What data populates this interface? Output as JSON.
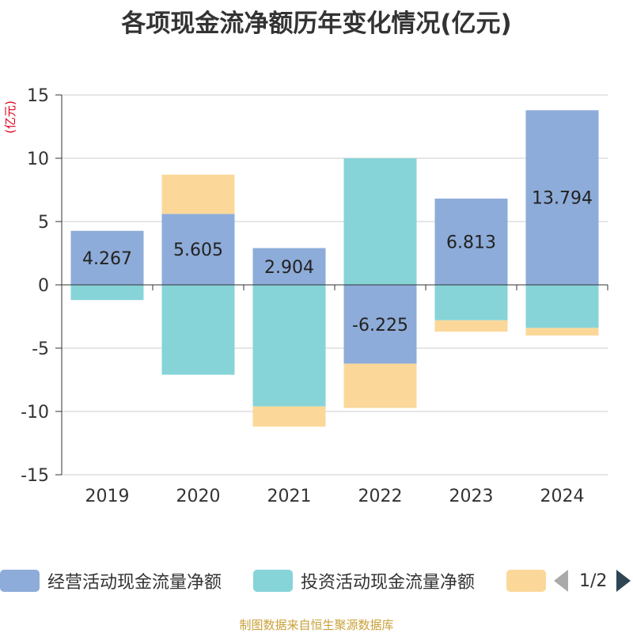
{
  "title": "各项现金流净额历年变化情况(亿元)",
  "source": "制图数据来自恒生聚源数据库",
  "pager": {
    "text": "1/2"
  },
  "colors": {
    "operating": "#8eacd9",
    "investing": "#86d4d8",
    "financing": "#fbd899",
    "axis": "#333333",
    "grid": "#cccccc",
    "unit": "#e0001b"
  },
  "chart_data": {
    "type": "bar",
    "stacked": true,
    "title": "各项现金流净额历年变化情况(亿元)",
    "ylabel": "(亿元)",
    "ylim": [
      -15,
      15
    ],
    "yticks": [
      15,
      10,
      5,
      0,
      -5,
      -10,
      -15
    ],
    "categories": [
      "2019",
      "2020",
      "2021",
      "2022",
      "2023",
      "2024"
    ],
    "series": [
      {
        "name": "经营活动现金流量净额",
        "color_key": "operating",
        "values": [
          4.267,
          5.605,
          2.904,
          -6.225,
          6.813,
          13.794
        ],
        "labels": [
          "4.267",
          "5.605",
          "2.904",
          "-6.225",
          "6.813",
          "13.794"
        ]
      },
      {
        "name": "投资活动现金流量净额",
        "color_key": "investing",
        "values": [
          -1.2,
          -7.1,
          -9.6,
          10.0,
          -2.8,
          -3.4
        ],
        "labels": []
      },
      {
        "name": "",
        "color_key": "financing",
        "values": [
          0,
          3.1,
          -1.6,
          -3.5,
          -0.9,
          -0.6
        ],
        "labels": []
      }
    ],
    "legend_position": "bottom"
  }
}
